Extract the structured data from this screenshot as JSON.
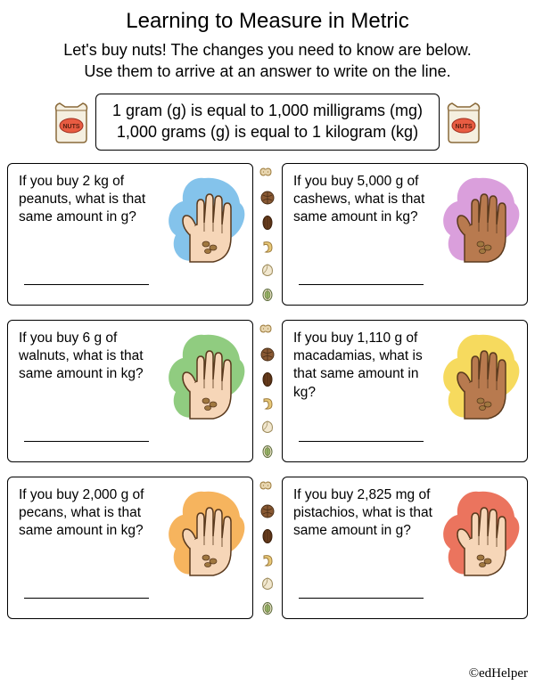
{
  "title": "Learning to Measure in Metric",
  "subtitle_line1": "Let's buy nuts! The changes you need to know are below.",
  "subtitle_line2": "Use them to arrive at an answer to write on the line.",
  "conversion_line1": "1 gram (g) is equal to 1,000 milligrams (mg)",
  "conversion_line2": "1,000 grams (g) is equal to 1 kilogram (kg)",
  "bag_label": "NUTS",
  "questions": [
    {
      "text": "If you buy 2 kg of peanuts, what is that same amount in g?",
      "splash_color": "#6fb8e8",
      "skin": "#f6d6b8"
    },
    {
      "text": "If you buy 5,000 g of cashews, what is that same amount in kg?",
      "splash_color": "#d48ed6",
      "skin": "#b87a4f"
    },
    {
      "text": "If you buy 6 g of walnuts, what is that same amount in kg?",
      "splash_color": "#7cc36a",
      "skin": "#f6d6b8"
    },
    {
      "text": "If you buy 1,110 g of macadamias, what is that same amount in kg?",
      "splash_color": "#f5d442",
      "skin": "#b87a4f"
    },
    {
      "text": "If you buy 2,000 g of pecans, what is that same amount in kg?",
      "splash_color": "#f5a742",
      "skin": "#f6d6b8"
    },
    {
      "text": "If you buy 2,825 mg of pistachios, what is that same amount in g?",
      "splash_color": "#e85c42",
      "skin": "#f6d6b8"
    }
  ],
  "nut_icons": [
    {
      "fill": "#e8d6b0",
      "stroke": "#9c7a3a",
      "shape": "peanut"
    },
    {
      "fill": "#8a5a34",
      "stroke": "#4a2e16",
      "shape": "walnut"
    },
    {
      "fill": "#6a3e1e",
      "stroke": "#3a1e0a",
      "shape": "pecan"
    },
    {
      "fill": "#e8c878",
      "stroke": "#9c7a3a",
      "shape": "cashew"
    },
    {
      "fill": "#f2e8d0",
      "stroke": "#9c8a5a",
      "shape": "macadamia"
    },
    {
      "fill": "#9cb86a",
      "stroke": "#5a6a3a",
      "shape": "pistachio"
    }
  ],
  "copyright": "©edHelper"
}
